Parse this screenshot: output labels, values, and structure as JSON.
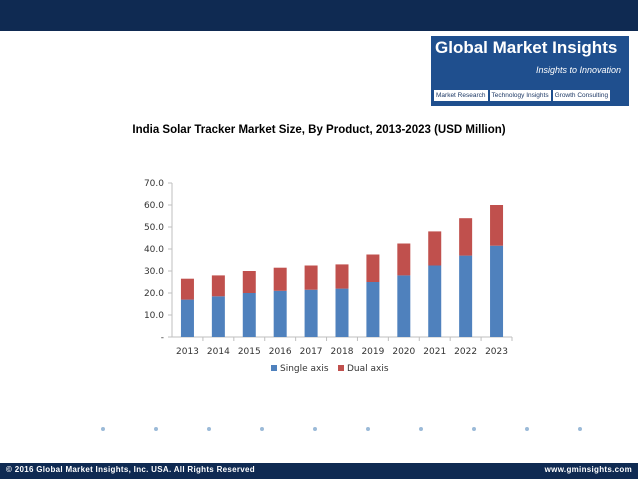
{
  "logo": {
    "title": "Global Market Insights",
    "tagline": "Insights to Innovation",
    "links": [
      "Market Research",
      "Technology Insights",
      "Growth Consulting"
    ]
  },
  "footer": {
    "copyright": "© 2016 Global Market Insights, Inc. USA.  All Rights Reserved",
    "website": "www.gminsights.com"
  },
  "colors": {
    "header_bar": "#0f2a52",
    "single_axis": "#4f81bd",
    "dual_axis": "#c0504d"
  },
  "chart_data": {
    "type": "bar",
    "stacked": true,
    "title": "India Solar Tracker Market Size, By Product, 2013-2023 (USD Million)",
    "categories": [
      "2013",
      "2014",
      "2015",
      "2016",
      "2017",
      "2018",
      "2019",
      "2020",
      "2021",
      "2022",
      "2023"
    ],
    "series": [
      {
        "name": "Single axis",
        "color": "#4f81bd",
        "values": [
          17.0,
          18.5,
          20.0,
          21.0,
          21.5,
          22.0,
          25.0,
          28.0,
          32.5,
          37.0,
          41.5
        ]
      },
      {
        "name": "Dual axis",
        "color": "#c0504d",
        "values": [
          9.5,
          9.5,
          10.0,
          10.5,
          11.0,
          11.0,
          12.5,
          14.5,
          15.5,
          17.0,
          18.5
        ]
      }
    ],
    "ylim": [
      0,
      70
    ],
    "yticks": [
      {
        "value": 0,
        "label": "-"
      },
      {
        "value": 10,
        "label": "10.0"
      },
      {
        "value": 20,
        "label": "20.0"
      },
      {
        "value": 30,
        "label": "30.0"
      },
      {
        "value": 40,
        "label": "40.0"
      },
      {
        "value": 50,
        "label": "50.0"
      },
      {
        "value": 60,
        "label": "60.0"
      },
      {
        "value": 70,
        "label": "70.0"
      }
    ],
    "legend_position": "bottom",
    "grid": false
  }
}
